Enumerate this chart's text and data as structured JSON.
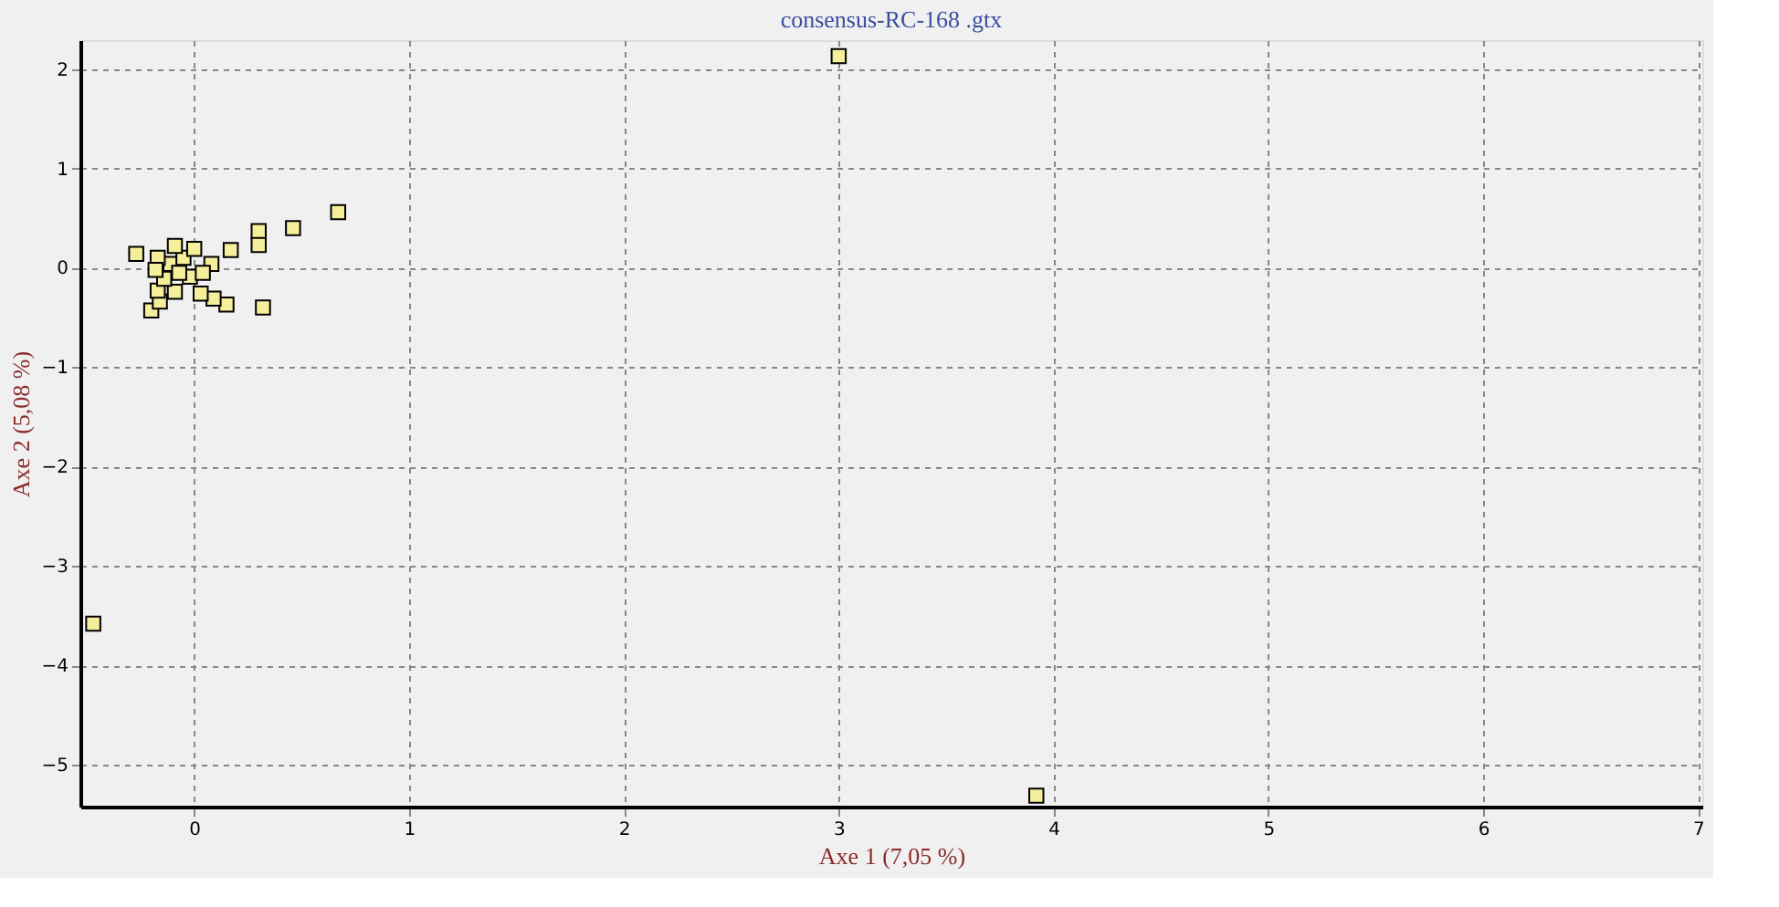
{
  "chart_data": {
    "type": "scatter",
    "title": "consensus-RC-168 .gtx",
    "xlabel": "Axe 1 (7,05 %)",
    "ylabel": "Axe 2 (5,08 %)",
    "series": [
      {
        "color": "#f5ee9a",
        "x": [
          -0.27,
          0.67,
          0.46,
          0.3,
          0.3,
          0.17,
          0.32,
          -0.2,
          0.15,
          0.09,
          0.03,
          -0.16,
          -0.17,
          -0.09,
          -0.02,
          -0.14,
          -0.11,
          -0.05,
          0.02,
          0.08,
          -0.03,
          -0.09,
          0.0,
          -0.17,
          -0.18,
          0.04,
          -0.07,
          3.0,
          -0.47,
          3.92
        ],
        "values": [
          0.14,
          0.56,
          0.4,
          0.37,
          0.23,
          0.18,
          -0.4,
          -0.43,
          -0.37,
          -0.31,
          -0.26,
          -0.34,
          -0.23,
          -0.24,
          -0.09,
          -0.11,
          0.04,
          0.1,
          null,
          0.04,
          null,
          0.22,
          0.19,
          0.1,
          -0.02,
          -0.05,
          -0.05,
          2.13,
          -3.58,
          -5.31
        ]
      }
    ],
    "xlim": [
      -0.53,
      7.02
    ],
    "ylim": [
      -5.42,
      2.29
    ],
    "xticks": [
      0,
      1,
      2,
      3,
      4,
      5,
      6,
      7
    ],
    "yticks": [
      -5,
      -4,
      -3,
      -2,
      -1,
      0,
      1,
      2
    ],
    "grid": true,
    "marker": "square",
    "legend": false
  }
}
